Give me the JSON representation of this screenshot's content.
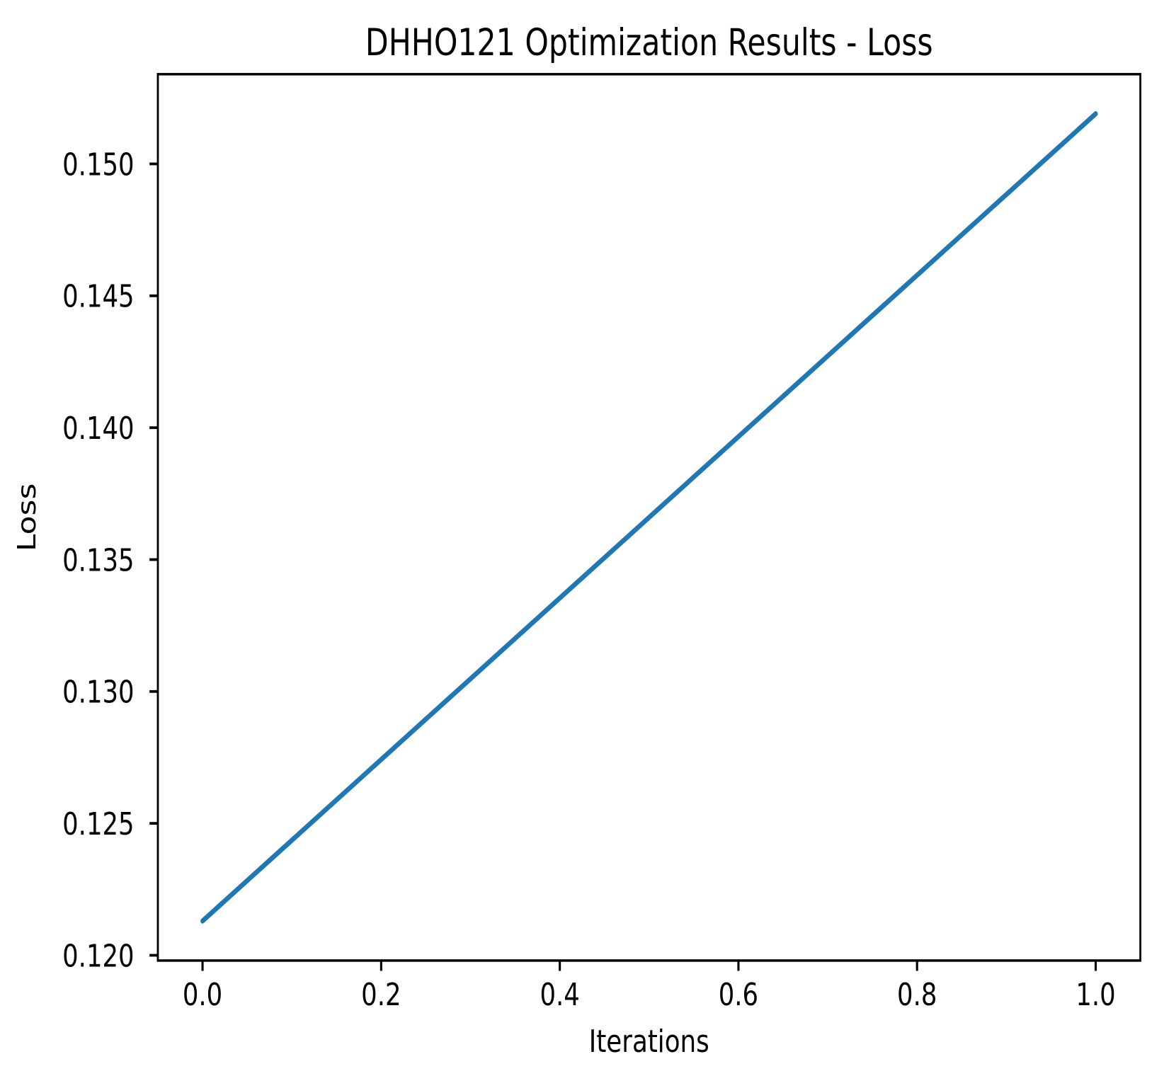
{
  "figure": {
    "title": "DHHO121 Optimization Results - Loss"
  },
  "chart_data": {
    "type": "line",
    "title": "DHHO121 Optimization Results - Loss",
    "xlabel": "Iterations",
    "ylabel": "Loss",
    "x": [
      0.0,
      1.0
    ],
    "series": [
      {
        "name": "Loss",
        "color": "#1f77b4",
        "values": [
          0.1213,
          0.1519
        ]
      }
    ],
    "xlim": [
      -0.05,
      1.05
    ],
    "ylim": [
      0.1198,
      0.1534
    ],
    "xticks": [
      0.0,
      0.2,
      0.4,
      0.6,
      0.8,
      1.0
    ],
    "xtick_labels": [
      "0.0",
      "0.2",
      "0.4",
      "0.6",
      "0.8",
      "1.0"
    ],
    "yticks": [
      0.12,
      0.125,
      0.13,
      0.135,
      0.14,
      0.145,
      0.15
    ],
    "ytick_labels": [
      "0.120",
      "0.125",
      "0.130",
      "0.135",
      "0.140",
      "0.145",
      "0.150"
    ],
    "grid": false,
    "legend": false,
    "axis_color": "#000000",
    "background_color": "#ffffff"
  }
}
